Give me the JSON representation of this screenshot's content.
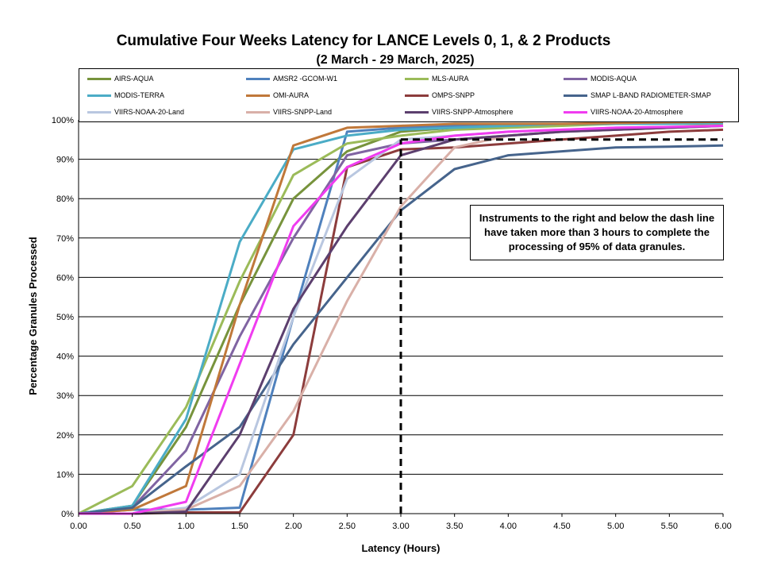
{
  "chart_data": {
    "type": "line",
    "title": "Cumulative Four Weeks Latency  for LANCE Levels 0, 1, & 2 Products",
    "subtitle": "(2  March   -  29  March,  2025)",
    "xlabel": "Latency (Hours)",
    "ylabel": "Percentage Granules Processed",
    "xlim": [
      0,
      6
    ],
    "ylim": [
      0,
      100
    ],
    "x_ticks": [
      "0.00",
      "0.50",
      "1.00",
      "1.50",
      "2.00",
      "2.50",
      "3.00",
      "3.50",
      "4.00",
      "4.50",
      "5.00",
      "5.50",
      "6.00"
    ],
    "y_ticks": [
      "0%",
      "10%",
      "20%",
      "30%",
      "40%",
      "50%",
      "60%",
      "70%",
      "80%",
      "90%",
      "100%"
    ],
    "grid": "horizontal",
    "legend_position": "top",
    "x": [
      0,
      0.5,
      1,
      1.5,
      2,
      2.5,
      3,
      3.5,
      4,
      4.5,
      5,
      5.5,
      6
    ],
    "series": [
      {
        "name": "AIRS-AQUA",
        "color": "#77933c",
        "values": [
          0,
          2,
          22,
          53,
          80,
          92,
          97,
          98,
          98.5,
          99,
          99,
          99,
          99.2
        ]
      },
      {
        "name": "AMSR2 -GCOM-W1",
        "color": "#4f81bd",
        "values": [
          0,
          1,
          1,
          1.5,
          50,
          97,
          98,
          98.5,
          99,
          99,
          99,
          99,
          99.2
        ]
      },
      {
        "name": "MLS-AURA",
        "color": "#9bbb59",
        "values": [
          0,
          7,
          27,
          59,
          86,
          94,
          96,
          97.5,
          98,
          98.5,
          99,
          99,
          99
        ]
      },
      {
        "name": "MODIS-AQUA",
        "color": "#8064a2",
        "values": [
          0,
          1.5,
          16,
          45,
          70,
          91,
          94,
          95,
          96,
          97,
          97.5,
          98,
          98.5
        ]
      },
      {
        "name": "MODIS-TERRA",
        "color": "#4bacc6",
        "values": [
          0,
          2,
          24,
          69,
          92.5,
          96,
          97.5,
          98,
          98.5,
          99,
          99,
          99,
          99.2
        ]
      },
      {
        "name": "OMI-AURA",
        "color": "#c0783a",
        "values": [
          0,
          1,
          7,
          53,
          93.5,
          98,
          98.5,
          99,
          99,
          99,
          99.2,
          99.4,
          99.5
        ]
      },
      {
        "name": "OMPS-SNPP",
        "color": "#8c3c3c",
        "values": [
          0,
          0,
          0.3,
          0.3,
          20,
          88,
          92.5,
          93,
          94,
          95,
          96,
          97,
          97.5
        ]
      },
      {
        "name": "SMAP L-BAND RADIOMETER-SMAP",
        "color": "#46648c",
        "values": [
          0,
          1.5,
          12,
          22,
          43,
          60,
          77,
          87.5,
          91,
          92,
          93,
          93.2,
          93.5
        ]
      },
      {
        "name": "VIIRS-NOAA-20-Land",
        "color": "#b9c7e0",
        "values": [
          0,
          0,
          1.5,
          10,
          50,
          85,
          95,
          96,
          97,
          97.5,
          98,
          98.2,
          98.5
        ]
      },
      {
        "name": "VIIRS-SNPP-Land",
        "color": "#d9b0a8",
        "values": [
          0,
          0,
          1,
          7,
          26,
          54,
          78,
          93,
          96,
          97,
          97.5,
          98,
          98.5
        ]
      },
      {
        "name": "VIIRS-SNPP-Atmosphere",
        "color": "#5c3f6e",
        "values": [
          0,
          0,
          0.5,
          20,
          52,
          73,
          91,
          95,
          96,
          97,
          97.5,
          98,
          98.5
        ]
      },
      {
        "name": "VIIRS-NOAA-20-Atmosphere",
        "color": "#f03cf0",
        "values": [
          0,
          0,
          3,
          38,
          73,
          88,
          94,
          96,
          97,
          97.5,
          98,
          98.2,
          98.5
        ]
      }
    ],
    "threshold": {
      "x": 3,
      "y": 95
    },
    "annotation": "Instruments to the right and below the dash line have taken more than 3 hours to complete the processing of 95% of data granules."
  }
}
